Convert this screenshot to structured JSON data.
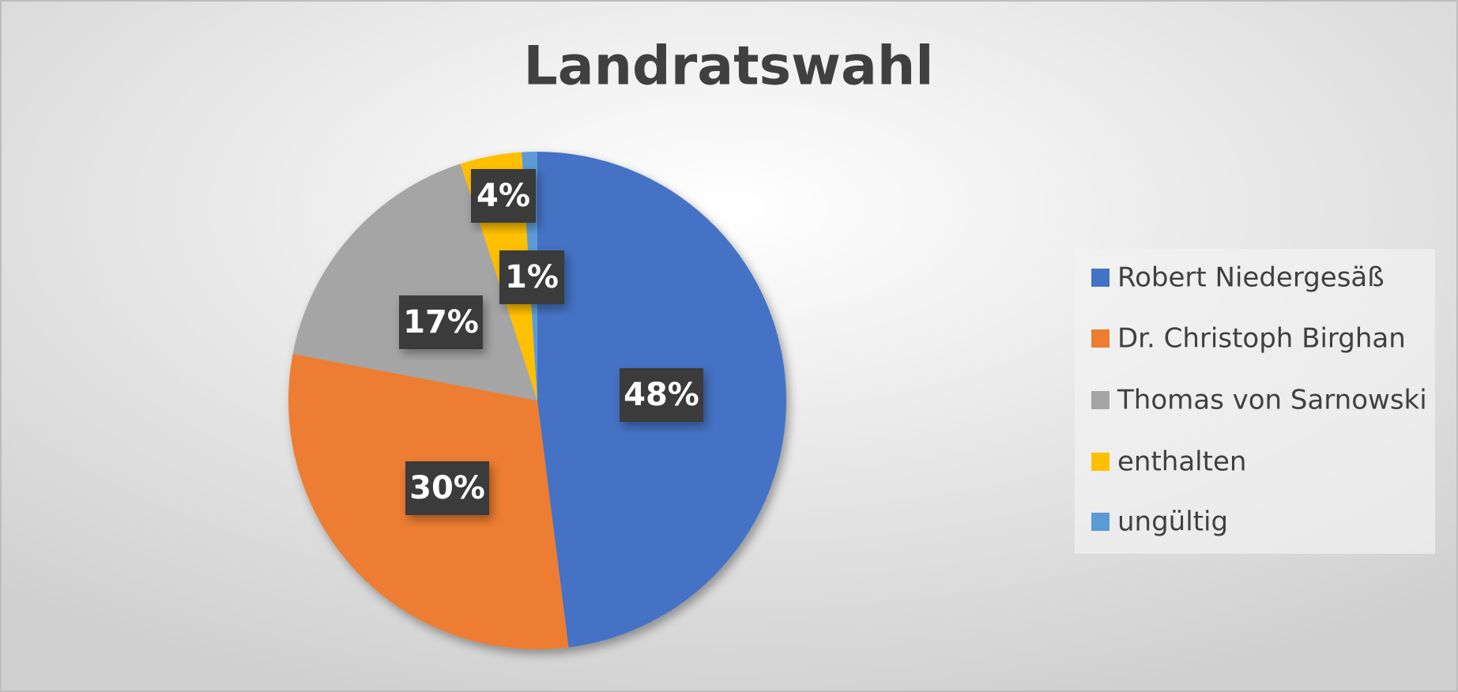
{
  "chart_data": {
    "type": "pie",
    "title": "Landratswahl",
    "categories": [
      "Robert Niedergesäß",
      "Dr. Christoph Birghan",
      "Thomas von Sarnowski",
      "enthalten",
      "ungültig"
    ],
    "values": [
      48,
      30,
      17,
      4,
      1
    ],
    "value_labels": [
      "48%",
      "30%",
      "17%",
      "4%",
      "1%"
    ],
    "colors": [
      "#4472c4",
      "#ed7d31",
      "#a5a5a5",
      "#ffc000",
      "#5b9bd5"
    ],
    "legend": "right"
  }
}
